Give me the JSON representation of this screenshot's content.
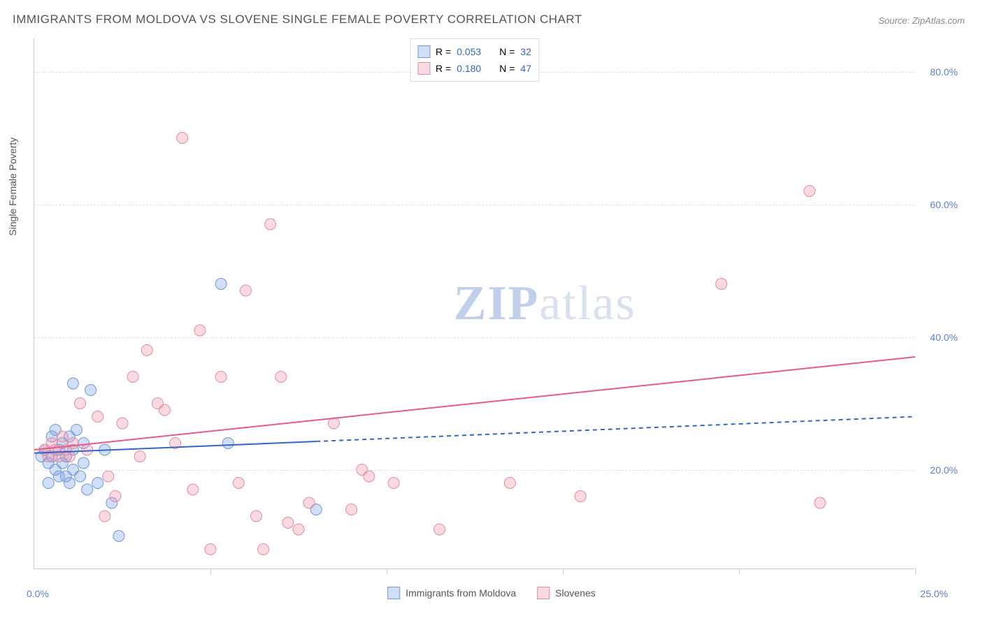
{
  "title": "IMMIGRANTS FROM MOLDOVA VS SLOVENE SINGLE FEMALE POVERTY CORRELATION CHART",
  "source": "Source: ZipAtlas.com",
  "ylabel": "Single Female Poverty",
  "watermark_a": "ZIP",
  "watermark_b": "atlas",
  "chart": {
    "type": "scatter",
    "xlim": [
      0,
      25
    ],
    "ylim": [
      5,
      85
    ],
    "x_ticks": [
      0,
      5,
      10,
      15,
      20,
      25
    ],
    "x_tick_labels": {
      "left": "0.0%",
      "right": "25.0%"
    },
    "y_ticks": [
      20,
      40,
      60,
      80
    ],
    "y_tick_labels": [
      "20.0%",
      "40.0%",
      "60.0%",
      "80.0%"
    ],
    "grid_color": "#e0e0e0",
    "background_color": "#ffffff",
    "axis_color": "#cccccc",
    "label_color": "#5b7fd6",
    "label_fontsize": 14,
    "marker_radius": 8,
    "marker_opacity": 0.45,
    "series": [
      {
        "name": "Immigrants from Moldova",
        "color_fill": "rgba(120,160,230,0.35)",
        "color_stroke": "#6f98d8",
        "R": "0.053",
        "N": "32",
        "trend": {
          "x1": 0,
          "y1": 22.5,
          "x2": 25,
          "y2": 28,
          "solid_until_x": 8,
          "color": "#3366cc",
          "width": 2
        },
        "points": [
          [
            0.2,
            22
          ],
          [
            0.3,
            23
          ],
          [
            0.4,
            21
          ],
          [
            0.5,
            25
          ],
          [
            0.5,
            22
          ],
          [
            0.6,
            20
          ],
          [
            0.6,
            26
          ],
          [
            0.7,
            23
          ],
          [
            0.7,
            19
          ],
          [
            0.8,
            24
          ],
          [
            0.8,
            21
          ],
          [
            0.9,
            22
          ],
          [
            0.9,
            19
          ],
          [
            1.0,
            25
          ],
          [
            1.0,
            18
          ],
          [
            1.1,
            20
          ],
          [
            1.1,
            23
          ],
          [
            1.2,
            26
          ],
          [
            1.3,
            19
          ],
          [
            1.4,
            21
          ],
          [
            1.4,
            24
          ],
          [
            1.5,
            17
          ],
          [
            1.6,
            32
          ],
          [
            1.8,
            18
          ],
          [
            2.0,
            23
          ],
          [
            2.2,
            15
          ],
          [
            2.4,
            10
          ],
          [
            5.3,
            48
          ],
          [
            5.5,
            24
          ],
          [
            1.1,
            33
          ],
          [
            8.0,
            14
          ],
          [
            0.4,
            18
          ]
        ]
      },
      {
        "name": "Slovenes",
        "color_fill": "rgba(240,150,170,0.35)",
        "color_stroke": "#e38ba1",
        "R": "0.180",
        "N": "47",
        "trend": {
          "x1": 0,
          "y1": 23,
          "x2": 25,
          "y2": 37,
          "solid_until_x": 25,
          "color": "#e75a8b",
          "width": 2
        },
        "points": [
          [
            0.3,
            23
          ],
          [
            0.4,
            22
          ],
          [
            0.5,
            24
          ],
          [
            0.6,
            23
          ],
          [
            0.7,
            22
          ],
          [
            0.8,
            25
          ],
          [
            0.9,
            23
          ],
          [
            1.0,
            22
          ],
          [
            1.1,
            24
          ],
          [
            1.3,
            30
          ],
          [
            1.5,
            23
          ],
          [
            1.8,
            28
          ],
          [
            2.0,
            13
          ],
          [
            2.1,
            19
          ],
          [
            2.3,
            16
          ],
          [
            2.5,
            27
          ],
          [
            2.8,
            34
          ],
          [
            3.0,
            22
          ],
          [
            3.2,
            38
          ],
          [
            3.5,
            30
          ],
          [
            3.7,
            29
          ],
          [
            4.0,
            24
          ],
          [
            4.2,
            70
          ],
          [
            4.5,
            17
          ],
          [
            4.7,
            41
          ],
          [
            5.0,
            8
          ],
          [
            5.3,
            34
          ],
          [
            5.8,
            18
          ],
          [
            6.0,
            47
          ],
          [
            6.3,
            13
          ],
          [
            6.7,
            57
          ],
          [
            7.0,
            34
          ],
          [
            7.2,
            12
          ],
          [
            7.5,
            11
          ],
          [
            7.8,
            15
          ],
          [
            8.5,
            27
          ],
          [
            9.0,
            14
          ],
          [
            9.3,
            20
          ],
          [
            9.5,
            19
          ],
          [
            10.2,
            18
          ],
          [
            11.5,
            11
          ],
          [
            13.5,
            18
          ],
          [
            15.5,
            16
          ],
          [
            19.5,
            48
          ],
          [
            22.0,
            62
          ],
          [
            22.3,
            15
          ],
          [
            6.5,
            8
          ]
        ]
      }
    ],
    "legend_top": [
      {
        "swatch_fill": "rgba(120,160,230,0.35)",
        "swatch_stroke": "#6f98d8"
      },
      {
        "swatch_fill": "rgba(240,150,170,0.35)",
        "swatch_stroke": "#e38ba1"
      }
    ]
  }
}
